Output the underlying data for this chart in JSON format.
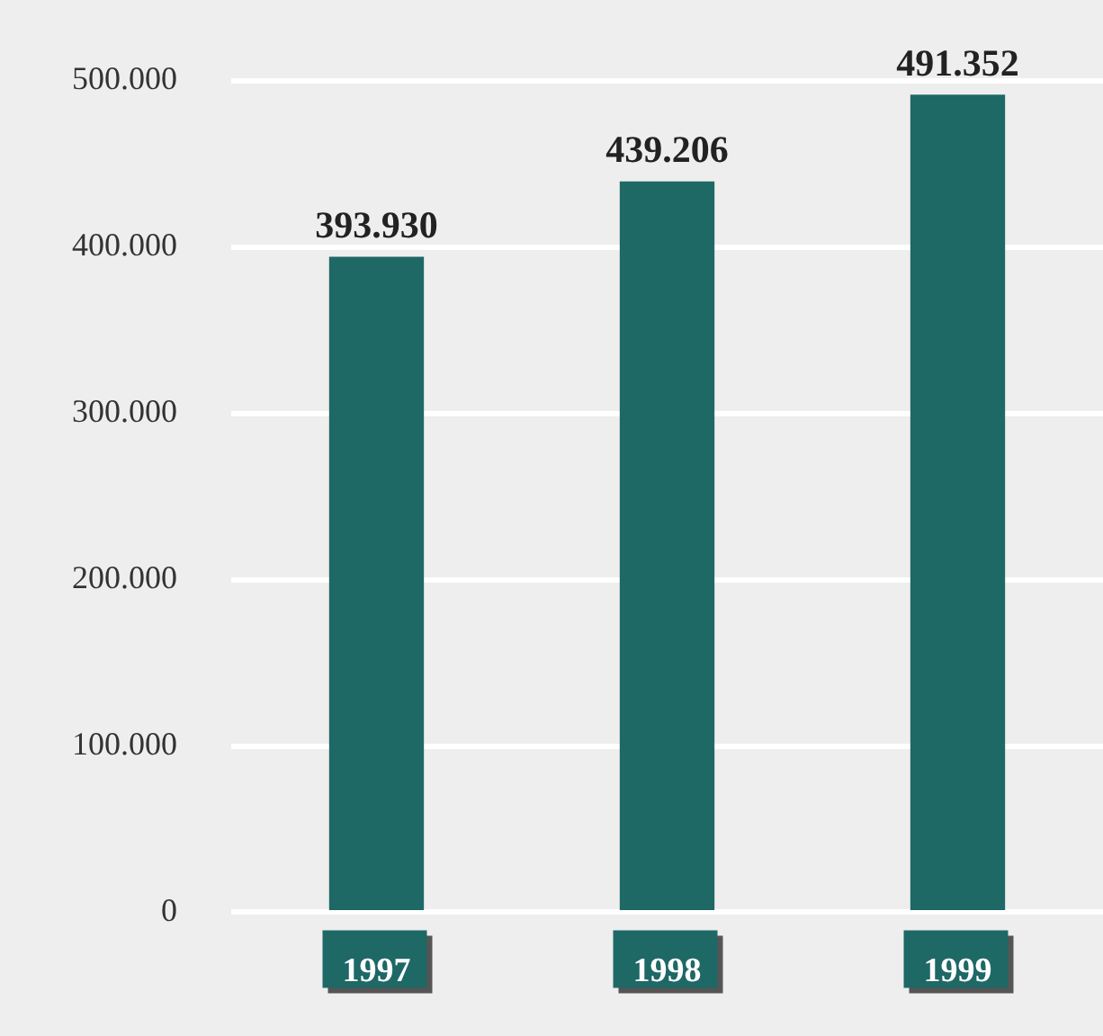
{
  "chart_data": {
    "type": "bar",
    "categories": [
      "1997",
      "1998",
      "1999"
    ],
    "values": [
      393930,
      439206,
      491352
    ],
    "value_labels": [
      "393.930",
      "439.206",
      "491.352"
    ],
    "color": "#1e6866",
    "ylim": [
      0,
      500000
    ],
    "yticks": [
      {
        "value": 0,
        "label": "0"
      },
      {
        "value": 100000,
        "label": "100.000"
      },
      {
        "value": 200000,
        "label": "200.000"
      },
      {
        "value": 300000,
        "label": "300.000"
      },
      {
        "value": 400000,
        "label": "400.000"
      },
      {
        "value": 500000,
        "label": "500.000"
      }
    ],
    "grid": "y",
    "legend": false
  }
}
